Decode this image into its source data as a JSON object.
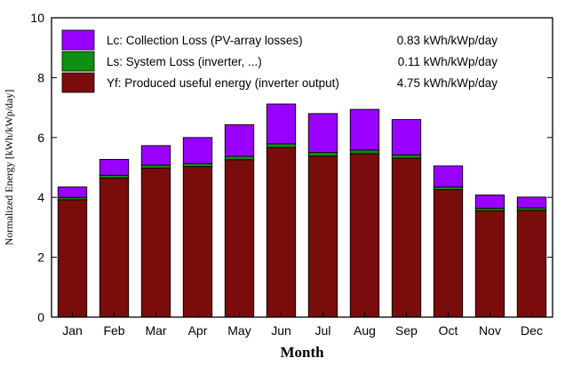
{
  "chart_data": {
    "type": "bar",
    "stacked": true,
    "categories": [
      "Jan",
      "Feb",
      "Mar",
      "Apr",
      "May",
      "Jun",
      "Jul",
      "Aug",
      "Sep",
      "Oct",
      "Nov",
      "Dec"
    ],
    "series": [
      {
        "name": "Yf: Produced useful energy  (inverter output)",
        "value_label": "4.75 kWh/kWp/day",
        "color": "#7a0c0c",
        "values": [
          3.92,
          4.65,
          4.98,
          5.03,
          5.26,
          5.67,
          5.38,
          5.46,
          5.31,
          4.26,
          3.56,
          3.57
        ]
      },
      {
        "name": "Ls: System Loss  (inverter, ...)",
        "value_label": "0.11 kWh/kWp/day",
        "color": "#109010",
        "values": [
          0.08,
          0.09,
          0.1,
          0.1,
          0.11,
          0.12,
          0.12,
          0.12,
          0.11,
          0.09,
          0.08,
          0.08
        ]
      },
      {
        "name": "Lc: Collection Loss (PV-array losses)",
        "value_label": "0.83 kWh/kWp/day",
        "color": "#9a00ff",
        "values": [
          0.35,
          0.53,
          0.65,
          0.87,
          1.06,
          1.33,
          1.3,
          1.36,
          1.18,
          0.7,
          0.44,
          0.36
        ]
      }
    ],
    "xlabel": "Month",
    "ylabel": "Normalized Energy [kWh/kWp/day]",
    "ylim": [
      0,
      10
    ],
    "yticks": [
      0,
      2,
      4,
      6,
      8,
      10
    ],
    "grid": false,
    "legend_position": "top-left, inside"
  }
}
